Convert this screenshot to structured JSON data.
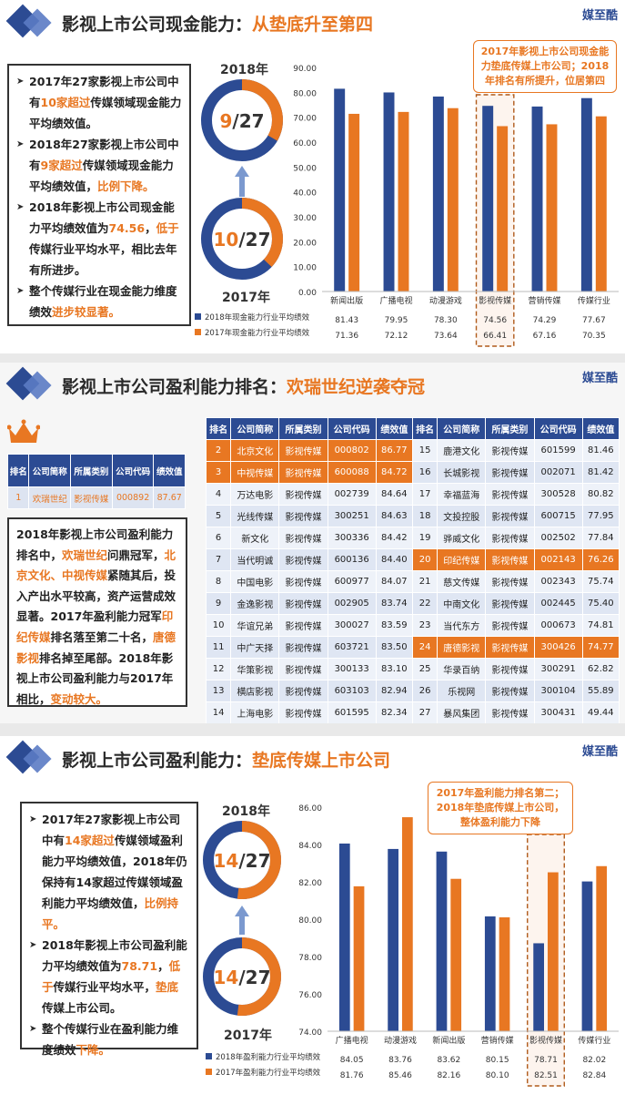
{
  "brand": "媒至酷",
  "section1": {
    "title_main": "影视上市公司现金能力：",
    "title_hl": "从垫底升至第四",
    "points": [
      {
        "parts": [
          [
            "2017年27家影视上市公司中有",
            ""
          ],
          [
            "10家超过",
            "o"
          ],
          [
            "传媒领域现金能力平均绩效值。",
            ""
          ]
        ]
      },
      {
        "parts": [
          [
            "2018年27家影视上市公司中有",
            ""
          ],
          [
            "9家超过",
            "o"
          ],
          [
            "传媒领域现金能力平均绩效值，",
            ""
          ],
          [
            "比例下降。",
            "o"
          ]
        ]
      },
      {
        "parts": [
          [
            "2018年影视上市公司现金能力平均绩效值为",
            ""
          ],
          [
            "74.56",
            "o"
          ],
          [
            "，",
            ""
          ],
          [
            "低于",
            "o"
          ],
          [
            "传媒行业平均水平，相比去年有所进步。",
            ""
          ]
        ]
      },
      {
        "parts": [
          [
            "整个传媒行业在现金能力维度绩效",
            ""
          ],
          [
            "进步较显著。",
            "o"
          ]
        ]
      }
    ],
    "year_top": "2018年",
    "year_bottom": "2017年",
    "ring_top": {
      "num": "9",
      "den": "27",
      "frac": 0.3333
    },
    "ring_bottom": {
      "num": "10",
      "den": "27",
      "frac": 0.3704
    },
    "callout": "2017年影视上市公司现金能力垫底传媒上市公司；2018年排名有所提升，位居第四",
    "colors": {
      "blue": "#2c4b93",
      "orange": "#e87722"
    }
  },
  "section2": {
    "title_main": "影视上市公司盈利能力排名：",
    "title_hl": "欢瑞世纪逆袭夺冠",
    "mini_headers": [
      "排名",
      "公司简称",
      "所属类别",
      "公司代码",
      "绩效值"
    ],
    "mini_row": [
      "1",
      "欢瑞世纪",
      "影视传媒",
      "000892",
      "87.67"
    ],
    "text_parts": [
      [
        "2018年影视上市公司盈利能力排名中，",
        ""
      ],
      [
        "欢瑞世纪",
        "o"
      ],
      [
        "问鼎冠军，",
        ""
      ],
      [
        "北京文化、中视传媒",
        "o"
      ],
      [
        "紧随其后，投入产出水平较高，资产运营成效显著。2017年盈利能力冠军",
        ""
      ],
      [
        "印纪传媒",
        "o"
      ],
      [
        "排名落至第二十名，",
        ""
      ],
      [
        "唐德影视",
        "o"
      ],
      [
        "排名掉至尾部。2018年影视上市公司盈利能力与2017年相比，",
        ""
      ],
      [
        "变动较大。",
        "o"
      ]
    ],
    "rank_headers": [
      "排名",
      "公司简称",
      "所属类别",
      "公司代码",
      "绩效值",
      "排名",
      "公司简称",
      "所属类别",
      "公司代码",
      "绩效值"
    ],
    "rank_rows": [
      [
        "2",
        "北京文化",
        "影视传媒",
        "000802",
        "86.77",
        "15",
        "鹿港文化",
        "影视传媒",
        "601599",
        "81.46"
      ],
      [
        "3",
        "中视传媒",
        "影视传媒",
        "600088",
        "84.72",
        "16",
        "长城影视",
        "影视传媒",
        "002071",
        "81.42"
      ],
      [
        "4",
        "万达电影",
        "影视传媒",
        "002739",
        "84.64",
        "17",
        "幸福蓝海",
        "影视传媒",
        "300528",
        "80.82"
      ],
      [
        "5",
        "光线传媒",
        "影视传媒",
        "300251",
        "84.63",
        "18",
        "文投控股",
        "影视传媒",
        "600715",
        "77.95"
      ],
      [
        "6",
        "新文化",
        "影视传媒",
        "300336",
        "84.42",
        "19",
        "骅威文化",
        "影视传媒",
        "002502",
        "77.84"
      ],
      [
        "7",
        "当代明诚",
        "影视传媒",
        "600136",
        "84.40",
        "20",
        "印纪传媒",
        "影视传媒",
        "002143",
        "76.26"
      ],
      [
        "8",
        "中国电影",
        "影视传媒",
        "600977",
        "84.07",
        "21",
        "慈文传媒",
        "影视传媒",
        "002343",
        "75.74"
      ],
      [
        "9",
        "金逸影视",
        "影视传媒",
        "002905",
        "83.74",
        "22",
        "中南文化",
        "影视传媒",
        "002445",
        "75.40"
      ],
      [
        "10",
        "华谊兄弟",
        "影视传媒",
        "300027",
        "83.59",
        "23",
        "当代东方",
        "影视传媒",
        "000673",
        "74.81"
      ],
      [
        "11",
        "中广天择",
        "影视传媒",
        "603721",
        "83.50",
        "24",
        "唐德影视",
        "影视传媒",
        "300426",
        "74.77"
      ],
      [
        "12",
        "华策影视",
        "影视传媒",
        "300133",
        "83.10",
        "25",
        "华录百纳",
        "影视传媒",
        "300291",
        "62.82"
      ],
      [
        "13",
        "横店影视",
        "影视传媒",
        "603103",
        "82.94",
        "26",
        "乐视网",
        "影视传媒",
        "300104",
        "55.89"
      ],
      [
        "14",
        "上海电影",
        "影视传媒",
        "601595",
        "82.34",
        "27",
        "暴风集团",
        "影视传媒",
        "300431",
        "49.44"
      ]
    ],
    "highlight": [
      [
        0,
        0
      ],
      [
        1,
        0
      ],
      [
        5,
        1
      ],
      [
        9,
        1
      ]
    ]
  },
  "section3": {
    "title_main": "影视上市公司盈利能力：",
    "title_hl": "垫底传媒上市公司",
    "points": [
      {
        "parts": [
          [
            "2017年27家影视上市公司中有",
            ""
          ],
          [
            "14家超过",
            "o"
          ],
          [
            "传媒领域盈利能力平均绩效值，2018年仍保持有14家超过传媒领域盈利能力平均绩效值，",
            ""
          ],
          [
            "比例持平。",
            "o"
          ]
        ]
      },
      {
        "parts": [
          [
            "2018年影视上市公司盈利能力平均绩效值为",
            ""
          ],
          [
            "78.71",
            "o"
          ],
          [
            "，",
            ""
          ],
          [
            "低于",
            "o"
          ],
          [
            "传媒行业平均水平，",
            ""
          ],
          [
            "垫底",
            "o"
          ],
          [
            "传媒上市公司。",
            ""
          ]
        ]
      },
      {
        "parts": [
          [
            "整个传媒行业在盈利能力维度绩效",
            ""
          ],
          [
            "下降。",
            "o"
          ]
        ]
      }
    ],
    "year_top": "2018年",
    "year_bottom": "2017年",
    "ring_top": {
      "num": "14",
      "den": "27",
      "frac": 0.5185
    },
    "ring_bottom": {
      "num": "14",
      "den": "27",
      "frac": 0.5185
    },
    "callout": "2017年盈利能力排名第二；2018年垫底传媒上市公司，整体盈利能力下降"
  },
  "chart_data": [
    {
      "type": "bar",
      "categories": [
        "新闻出版",
        "广播电视",
        "动漫游戏",
        "影视传媒",
        "营销传媒",
        "传媒行业"
      ],
      "series": [
        {
          "name": "2018年现金能力行业平均绩效",
          "values": [
            81.43,
            79.95,
            78.3,
            74.56,
            74.29,
            77.67
          ],
          "labels": [
            "81.43",
            "79.95",
            "78.30",
            "74.56",
            "74.29",
            "77.67"
          ],
          "color": "#2c4b93"
        },
        {
          "name": "2017年现金能力行业平均绩效",
          "values": [
            71.36,
            72.12,
            73.64,
            66.41,
            67.16,
            70.35
          ],
          "labels": [
            "71.36",
            "72.12",
            "73.64",
            "66.41",
            "67.16",
            "70.35"
          ],
          "color": "#e87722"
        }
      ],
      "ylim": [
        0,
        90
      ],
      "yticks": [
        "0.00",
        "10.00",
        "20.00",
        "30.00",
        "40.00",
        "50.00",
        "60.00",
        "70.00",
        "80.00",
        "90.00"
      ],
      "highlight_index": 3
    },
    {
      "type": "bar",
      "categories": [
        "广播电视",
        "动漫游戏",
        "新闻出版",
        "营销传媒",
        "影视传媒",
        "传媒行业"
      ],
      "series": [
        {
          "name": "2018年盈利能力行业平均绩效",
          "values": [
            84.05,
            83.76,
            83.62,
            80.15,
            78.71,
            82.02
          ],
          "labels": [
            "84.05",
            "83.76",
            "83.62",
            "80.15",
            "78.71",
            "82.02"
          ],
          "color": "#2c4b93"
        },
        {
          "name": "2017年盈利能力行业平均绩效",
          "values": [
            81.76,
            85.46,
            82.16,
            80.1,
            82.51,
            82.84
          ],
          "labels": [
            "81.76",
            "85.46",
            "82.16",
            "80.10",
            "82.51",
            "82.84"
          ],
          "color": "#e87722"
        }
      ],
      "ylim": [
        74,
        86
      ],
      "yticks": [
        "74.00",
        "76.00",
        "78.00",
        "80.00",
        "82.00",
        "84.00",
        "86.00"
      ],
      "highlight_index": 4
    }
  ]
}
